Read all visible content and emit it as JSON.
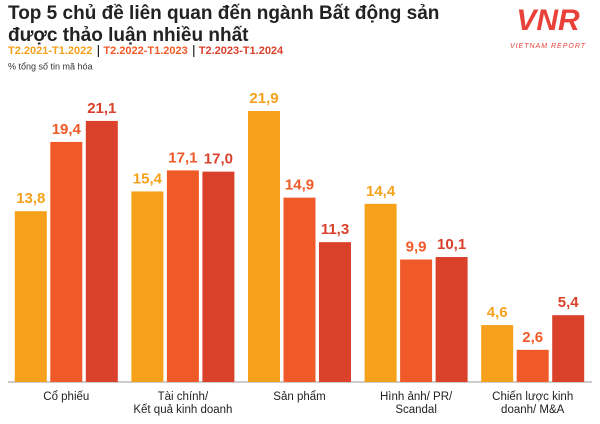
{
  "chart_data": {
    "type": "bar",
    "title": "Top 5 chủ đề liên quan đến ngành Bất động sản\nđược thảo luận nhiều nhất",
    "y_label": "% tổng số tin mã hóa",
    "logo": {
      "text": "VNR",
      "subtext": "VIETNAM REPORT"
    },
    "categories": [
      "Cổ phiếu",
      "Tài chính/\nKết quả kinh doanh",
      "Sản phẩm",
      "Hình ảnh/ PR/\nScandal",
      "Chiến lược kinh\ndoanh/ M&A"
    ],
    "series": [
      {
        "name": "T2.2021-T1.2022",
        "color": "#f5a11c",
        "values": [
          13.8,
          15.4,
          21.9,
          14.4,
          4.6
        ],
        "value_labels": [
          "13,8",
          "15,4",
          "21,9",
          "14,4",
          "4,6"
        ]
      },
      {
        "name": "T2.2022-T1.2023",
        "color": "#f05a28",
        "values": [
          19.4,
          17.1,
          14.9,
          9.9,
          2.6
        ],
        "value_labels": [
          "19,4",
          "17,1",
          "14,9",
          "9,9",
          "2,6"
        ]
      },
      {
        "name": "T2.2023-T1.2024",
        "color": "#d9412b",
        "values": [
          21.1,
          17.0,
          11.3,
          10.1,
          5.4
        ],
        "value_labels": [
          "21,1",
          "17,0",
          "11,3",
          "10,1",
          "5,4"
        ]
      }
    ],
    "grid": false
  }
}
